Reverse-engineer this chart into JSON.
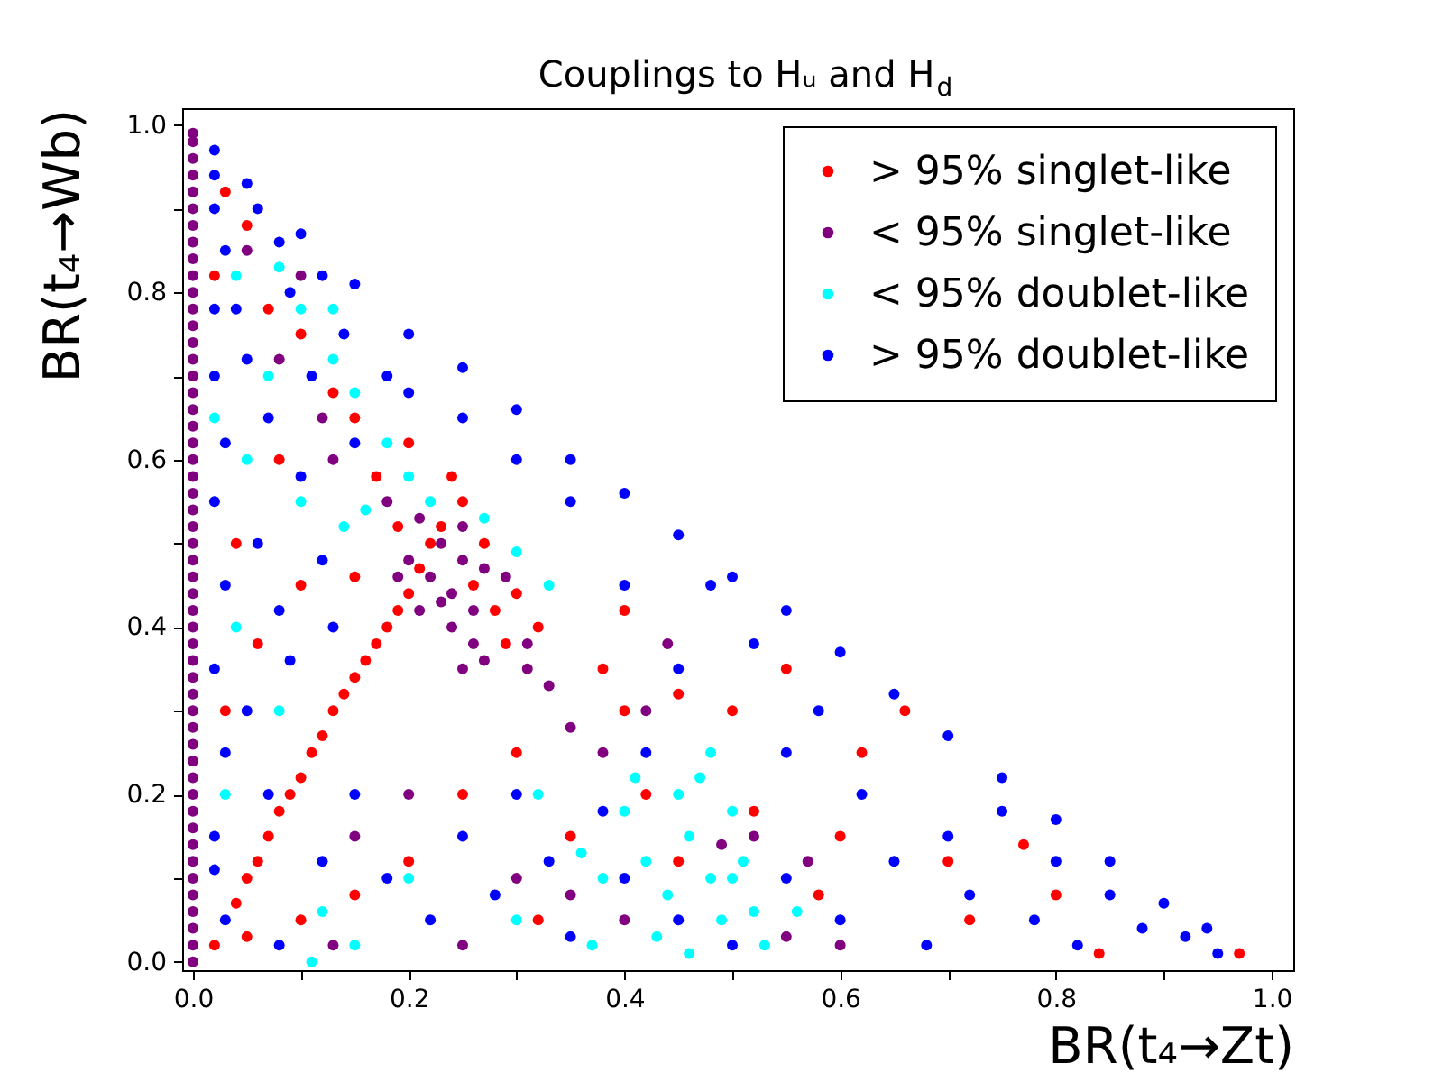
{
  "chart_data": {
    "type": "scatter",
    "title": "Couplings to Hᵤ and H$_{d}$",
    "xlabel": "BR(t₄→Zt)",
    "ylabel": "BR(t₄→Wb)",
    "xlim": [
      -0.01,
      1.02
    ],
    "ylim": [
      -0.01,
      1.02
    ],
    "xticks": [
      {
        "value": 0,
        "label": "0.0"
      },
      {
        "value": 0.1,
        "label": null
      },
      {
        "value": 0.2,
        "label": "0.2"
      },
      {
        "value": 0.3,
        "label": null
      },
      {
        "value": 0.4,
        "label": "0.4"
      },
      {
        "value": 0.5,
        "label": null
      },
      {
        "value": 0.6,
        "label": "0.6"
      },
      {
        "value": 0.7,
        "label": null
      },
      {
        "value": 0.8,
        "label": "0.8"
      },
      {
        "value": 0.9,
        "label": null
      },
      {
        "value": 1,
        "label": "1.0"
      }
    ],
    "yticks": [
      {
        "value": 0,
        "label": "0.0"
      },
      {
        "value": 0.1,
        "label": null
      },
      {
        "value": 0.2,
        "label": "0.2"
      },
      {
        "value": 0.3,
        "label": null
      },
      {
        "value": 0.4,
        "label": "0.4"
      },
      {
        "value": 0.5,
        "label": null
      },
      {
        "value": 0.6,
        "label": "0.6"
      },
      {
        "value": 0.7,
        "label": null
      },
      {
        "value": 0.8,
        "label": "0.8"
      },
      {
        "value": 0.9,
        "label": null
      },
      {
        "value": 1,
        "label": "1.0"
      }
    ],
    "grid": false,
    "legend": "top right",
    "marker": "circle",
    "series": [
      {
        "name": "> 95% singlet-like",
        "color": "#ff0000",
        "x": [
          0.02,
          0.04,
          0.05,
          0.06,
          0.07,
          0.08,
          0.09,
          0.1,
          0.11,
          0.12,
          0.13,
          0.14,
          0.15,
          0.16,
          0.17,
          0.18,
          0.19,
          0.2,
          0.21,
          0.22,
          0.23,
          0.25,
          0.24,
          0.27,
          0.26,
          0.28,
          0.3,
          0.32,
          0.29,
          0.05,
          0.1,
          0.15,
          0.2,
          0.25,
          0.3,
          0.35,
          0.32,
          0.4,
          0.42,
          0.45,
          0.38,
          0.4,
          0.45,
          0.5,
          0.55,
          0.6,
          0.62,
          0.66,
          0.7,
          0.72,
          0.77,
          0.8,
          0.84,
          0.97,
          0.58,
          0.52,
          0.03,
          0.05,
          0.02,
          0.07,
          0.1,
          0.13,
          0.15,
          0.08,
          0.17,
          0.2,
          0.04,
          0.1,
          0.03,
          0.06,
          0.15,
          0.19
        ],
        "values": [
          0.02,
          0.07,
          0.1,
          0.12,
          0.15,
          0.18,
          0.2,
          0.22,
          0.25,
          0.27,
          0.3,
          0.32,
          0.34,
          0.36,
          0.38,
          0.4,
          0.42,
          0.44,
          0.47,
          0.5,
          0.52,
          0.55,
          0.58,
          0.5,
          0.45,
          0.42,
          0.44,
          0.4,
          0.38,
          0.03,
          0.05,
          0.08,
          0.12,
          0.2,
          0.25,
          0.15,
          0.05,
          0.3,
          0.2,
          0.12,
          0.35,
          0.42,
          0.32,
          0.3,
          0.35,
          0.15,
          0.25,
          0.3,
          0.12,
          0.05,
          0.14,
          0.08,
          0.01,
          0.01,
          0.08,
          0.18,
          0.92,
          0.88,
          0.82,
          0.78,
          0.75,
          0.68,
          0.65,
          0.6,
          0.58,
          0.62,
          0.5,
          0.45,
          0.3,
          0.38,
          0.46,
          0.52
        ]
      },
      {
        "name": "< 95% singlet-like",
        "color": "#800080",
        "x": [
          0,
          0,
          0,
          0,
          0,
          0,
          0,
          0,
          0,
          0,
          0,
          0,
          0,
          0,
          0,
          0,
          0,
          0,
          0,
          0,
          0,
          0,
          0,
          0,
          0,
          0,
          0,
          0,
          0,
          0,
          0,
          0,
          0,
          0,
          0,
          0,
          0,
          0,
          0,
          0,
          0,
          0,
          0,
          0,
          0,
          0,
          0,
          0,
          0,
          0,
          0,
          0.2,
          0.22,
          0.24,
          0.23,
          0.25,
          0.21,
          0.26,
          0.24,
          0.27,
          0.21,
          0.25,
          0.31,
          0.26,
          0.23,
          0.19,
          0.29,
          0.31,
          0.33,
          0.25,
          0.18,
          0.13,
          0.27,
          0.25,
          0.3,
          0.35,
          0.4,
          0.57,
          0.55,
          0.38,
          0.42,
          0.35,
          0.49,
          0.2,
          0.15,
          0.13,
          0.52,
          0.6,
          0.44,
          0.05,
          0.1,
          0.08,
          0.12
        ],
        "values": [
          0,
          0.02,
          0.04,
          0.06,
          0.08,
          0.1,
          0.12,
          0.14,
          0.16,
          0.18,
          0.2,
          0.22,
          0.24,
          0.26,
          0.28,
          0.3,
          0.32,
          0.34,
          0.36,
          0.38,
          0.4,
          0.42,
          0.44,
          0.46,
          0.48,
          0.5,
          0.52,
          0.54,
          0.56,
          0.58,
          0.6,
          0.62,
          0.64,
          0.66,
          0.68,
          0.7,
          0.72,
          0.74,
          0.76,
          0.78,
          0.8,
          0.82,
          0.84,
          0.86,
          0.88,
          0.9,
          0.92,
          0.94,
          0.96,
          0.98,
          0.99,
          0.48,
          0.46,
          0.44,
          0.5,
          0.48,
          0.42,
          0.42,
          0.4,
          0.47,
          0.53,
          0.52,
          0.38,
          0.38,
          0.43,
          0.46,
          0.46,
          0.35,
          0.33,
          0.35,
          0.55,
          0.6,
          0.36,
          0.02,
          0.1,
          0.08,
          0.05,
          0.12,
          0.03,
          0.25,
          0.3,
          0.28,
          0.14,
          0.2,
          0.15,
          0.02,
          0.15,
          0.02,
          0.38,
          0.85,
          0.82,
          0.72,
          0.65
        ]
      },
      {
        "name": "< 95% doublet-like",
        "color": "#00ffff",
        "x": [
          0.04,
          0.08,
          0.1,
          0.13,
          0.07,
          0.13,
          0.15,
          0.18,
          0.2,
          0.16,
          0.14,
          0.1,
          0.05,
          0.02,
          0.22,
          0.27,
          0.3,
          0.33,
          0.04,
          0.03,
          0.08,
          0.12,
          0.11,
          0.36,
          0.38,
          0.4,
          0.42,
          0.44,
          0.45,
          0.46,
          0.47,
          0.48,
          0.49,
          0.5,
          0.51,
          0.52,
          0.53,
          0.48,
          0.43,
          0.46,
          0.5,
          0.56,
          0.41,
          0.37,
          0.32,
          0.3,
          0.2,
          0.15
        ],
        "values": [
          0.82,
          0.83,
          0.78,
          0.78,
          0.7,
          0.72,
          0.68,
          0.62,
          0.58,
          0.54,
          0.52,
          0.55,
          0.6,
          0.65,
          0.55,
          0.53,
          0.49,
          0.45,
          0.4,
          0.2,
          0.3,
          0.06,
          0,
          0.13,
          0.1,
          0.18,
          0.12,
          0.08,
          0.2,
          0.15,
          0.22,
          0.1,
          0.05,
          0.18,
          0.12,
          0.06,
          0.02,
          0.25,
          0.03,
          0.01,
          0.1,
          0.06,
          0.22,
          0.02,
          0.2,
          0.05,
          0.1,
          0.02
        ]
      },
      {
        "name": "> 95% doublet-like",
        "color": "#0000ff",
        "x": [
          0.02,
          0.02,
          0.03,
          0.02,
          0.04,
          0.06,
          0.08,
          0.02,
          0.05,
          0.09,
          0.12,
          0.03,
          0.07,
          0.11,
          0.14,
          0.02,
          0.06,
          0.1,
          0.15,
          0.18,
          0.03,
          0.08,
          0.12,
          0.02,
          0.05,
          0.09,
          0.13,
          0.03,
          0.07,
          0.02,
          0.02,
          0.03,
          0.08,
          0.12,
          0.15,
          0.18,
          0.22,
          0.25,
          0.28,
          0.3,
          0.33,
          0.35,
          0.38,
          0.4,
          0.42,
          0.45,
          0.5,
          0.55,
          0.6,
          0.62,
          0.65,
          0.68,
          0.7,
          0.72,
          0.75,
          0.78,
          0.8,
          0.82,
          0.85,
          0.88,
          0.92,
          0.95,
          0.58,
          0.52,
          0.48,
          0.55,
          0.45,
          0.4,
          0.35,
          0.3,
          0.25,
          0.2,
          0.02,
          0.05,
          0.1,
          0.15,
          0.2,
          0.25,
          0.3,
          0.35,
          0.4,
          0.45,
          0.5,
          0.55,
          0.6,
          0.65,
          0.7,
          0.75,
          0.8,
          0.85,
          0.9,
          0.94
        ],
        "values": [
          0.94,
          0.9,
          0.85,
          0.78,
          0.78,
          0.9,
          0.86,
          0.7,
          0.72,
          0.8,
          0.82,
          0.62,
          0.65,
          0.7,
          0.75,
          0.55,
          0.5,
          0.58,
          0.62,
          0.7,
          0.45,
          0.42,
          0.48,
          0.35,
          0.3,
          0.36,
          0.4,
          0.25,
          0.2,
          0.15,
          0.11,
          0.05,
          0.02,
          0.12,
          0.2,
          0.1,
          0.05,
          0.15,
          0.08,
          0.2,
          0.12,
          0.03,
          0.18,
          0.1,
          0.25,
          0.05,
          0.02,
          0.1,
          0.05,
          0.2,
          0.12,
          0.02,
          0.15,
          0.08,
          0.18,
          0.05,
          0.12,
          0.02,
          0.08,
          0.04,
          0.03,
          0.01,
          0.3,
          0.38,
          0.45,
          0.25,
          0.35,
          0.45,
          0.55,
          0.6,
          0.65,
          0.68,
          0.97,
          0.93,
          0.87,
          0.81,
          0.75,
          0.71,
          0.66,
          0.6,
          0.56,
          0.51,
          0.46,
          0.42,
          0.37,
          0.32,
          0.27,
          0.22,
          0.17,
          0.12,
          0.07,
          0.04
        ]
      }
    ]
  }
}
